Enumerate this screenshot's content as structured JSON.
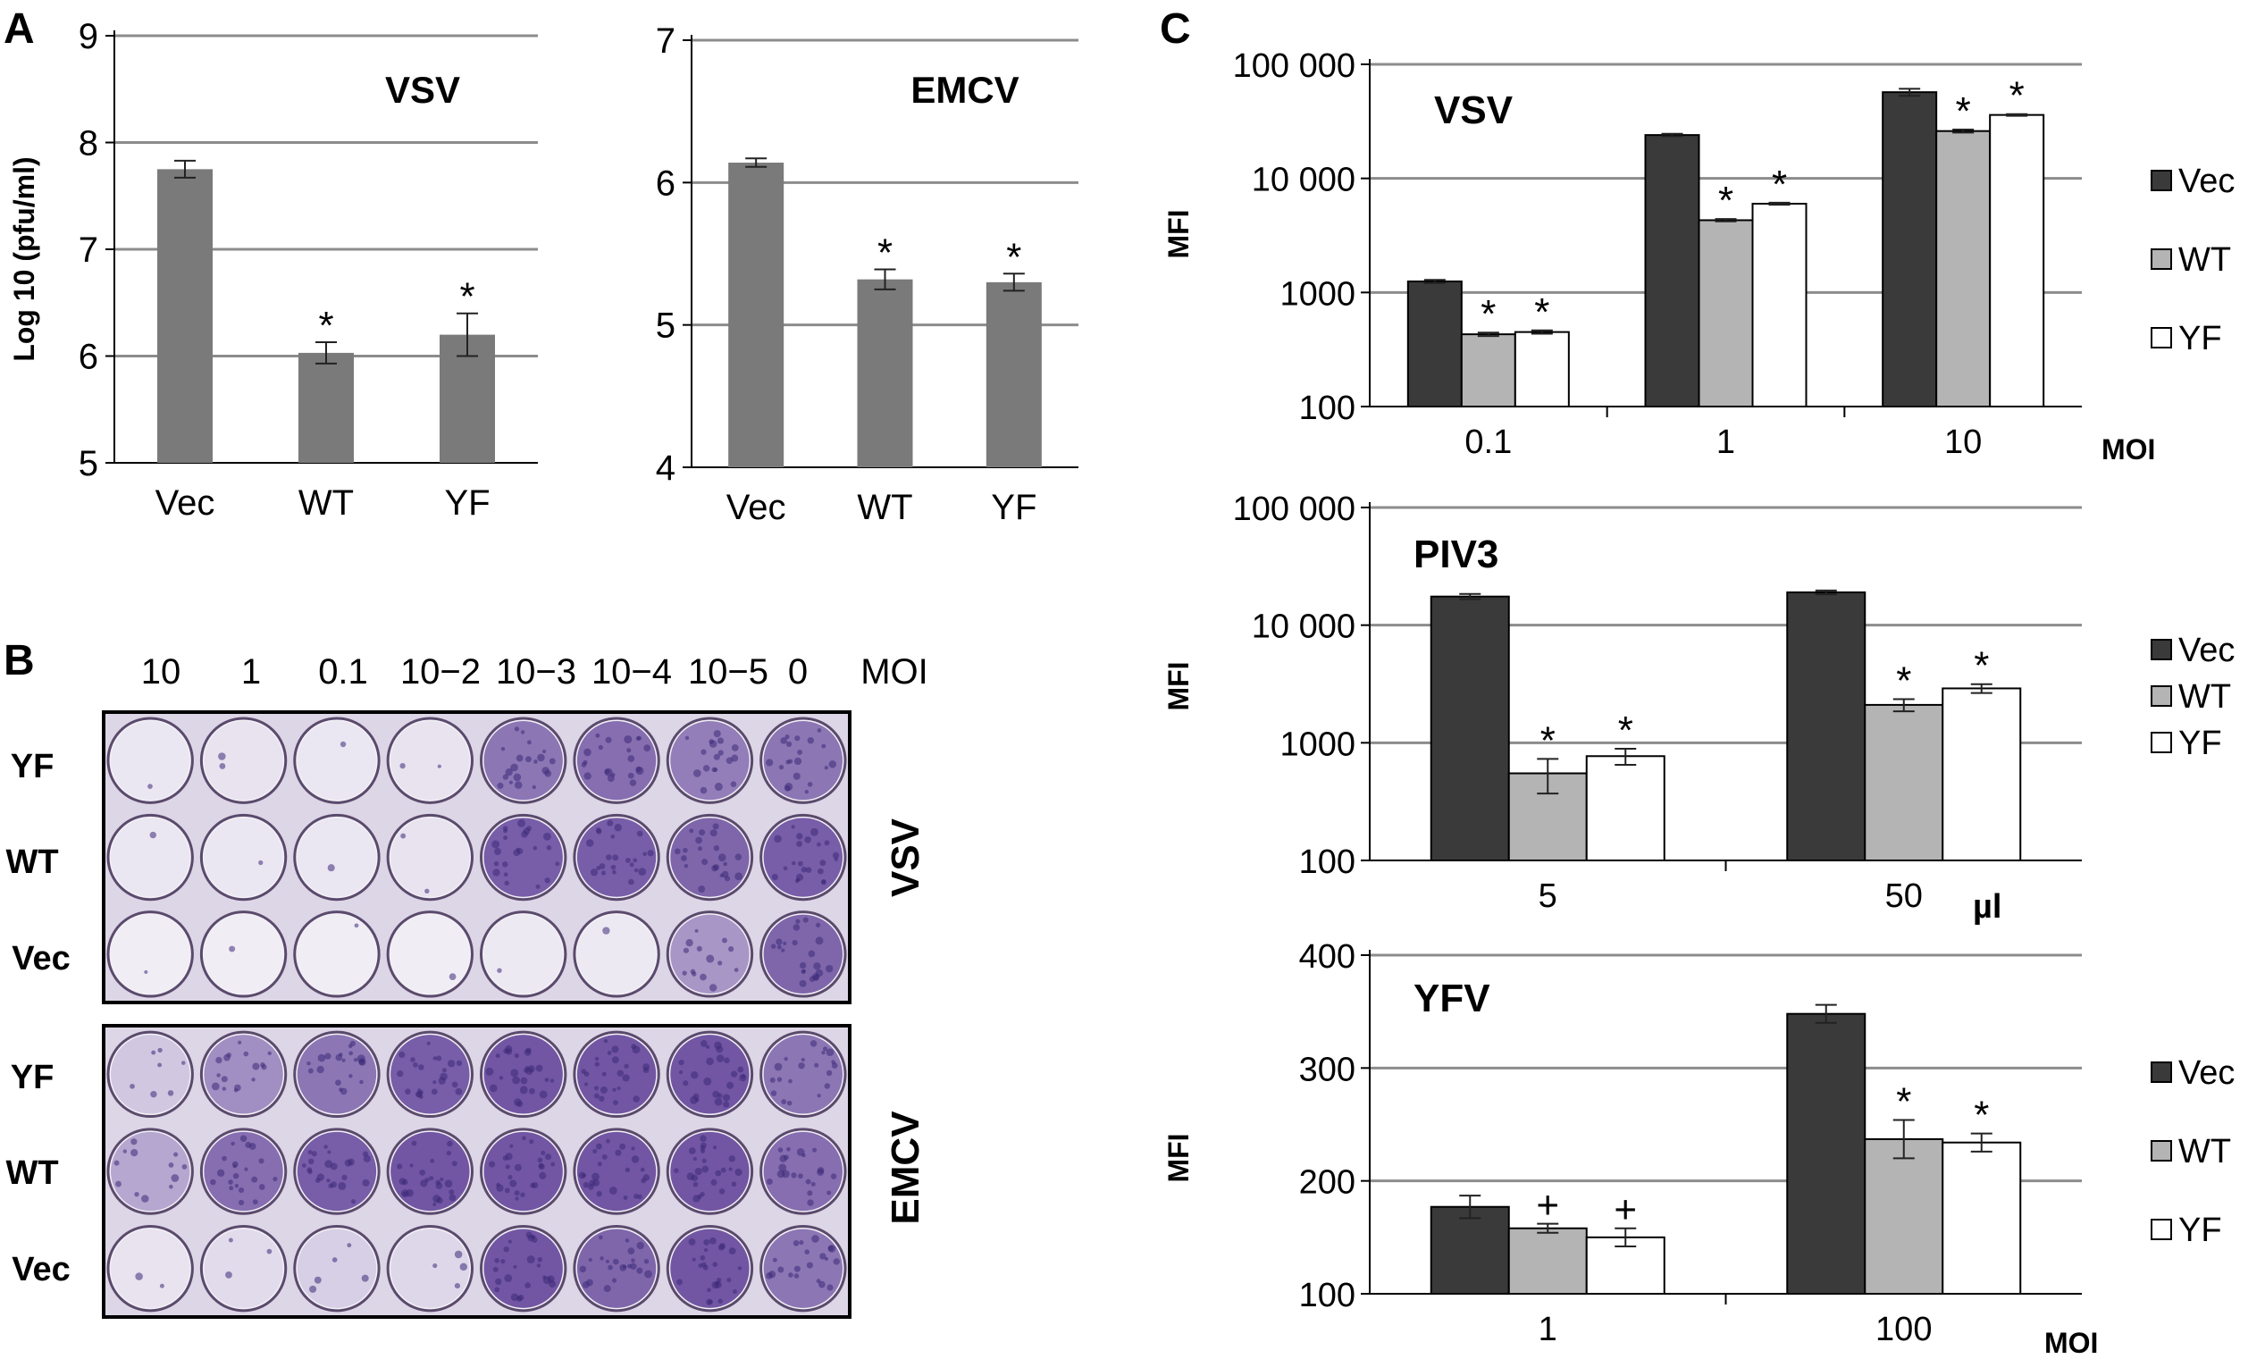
{
  "panel_labels": {
    "A": "A",
    "B": "B",
    "C": "C"
  },
  "colors": {
    "bar_grey": "#7a7a7a",
    "vec": "#3a3a3a",
    "wt": "#b4b4b4",
    "yf": "#ffffff",
    "grid": "#8c8c8c",
    "plaque": "#6a4d9e",
    "plate_bg": "#ddd6e6"
  },
  "panel_b": {
    "moi_header": [
      "10",
      "1",
      "0.1",
      "10−2",
      "10−3",
      "10−4",
      "10−5",
      "0",
      "MOI"
    ],
    "plates": [
      {
        "virus": "VSV",
        "rows": [
          {
            "label": "YF",
            "density": [
              0.05,
              0.08,
              0.05,
              0.08,
              0.75,
              0.8,
              0.7,
              0.75
            ]
          },
          {
            "label": "WT",
            "density": [
              0.05,
              0.05,
              0.05,
              0.08,
              0.9,
              0.9,
              0.85,
              0.9
            ]
          },
          {
            "label": "Vec",
            "density": [
              0.02,
              0.02,
              0.02,
              0.02,
              0.04,
              0.04,
              0.55,
              0.85
            ]
          }
        ]
      },
      {
        "virus": "EMCV",
        "rows": [
          {
            "label": "YF",
            "density": [
              0.25,
              0.6,
              0.75,
              0.9,
              0.95,
              0.95,
              0.95,
              0.75
            ]
          },
          {
            "label": "WT",
            "density": [
              0.45,
              0.8,
              0.9,
              0.95,
              0.95,
              0.95,
              0.95,
              0.8
            ]
          },
          {
            "label": "Vec",
            "density": [
              0.08,
              0.12,
              0.2,
              0.15,
              0.95,
              0.85,
              0.95,
              0.75
            ]
          }
        ]
      }
    ]
  },
  "chart_data": [
    {
      "id": "A-VSV",
      "type": "bar",
      "title": "VSV",
      "ylabel": "Log 10 (pfu/ml)",
      "ylim": [
        5,
        9
      ],
      "yticks": [
        "5",
        "6",
        "7",
        "8",
        "9"
      ],
      "categories": [
        "Vec",
        "WT",
        "YF"
      ],
      "values": [
        7.75,
        6.03,
        6.2
      ],
      "errors": [
        0.08,
        0.1,
        0.2
      ],
      "annotations": [
        "",
        "*",
        "*"
      ]
    },
    {
      "id": "A-EMCV",
      "type": "bar",
      "title": "EMCV",
      "ylabel": "",
      "ylim": [
        4,
        7
      ],
      "yticks": [
        "4",
        "5",
        "6",
        "7"
      ],
      "categories": [
        "Vec",
        "WT",
        "YF"
      ],
      "values": [
        6.14,
        5.32,
        5.3
      ],
      "errors": [
        0.03,
        0.07,
        0.06
      ],
      "annotations": [
        "",
        "*",
        "*"
      ]
    },
    {
      "id": "C-VSV",
      "type": "bar",
      "title": "VSV",
      "ylabel": "MFI",
      "scale": "log",
      "ylim": [
        100,
        100000
      ],
      "yticks": [
        "100",
        "1000",
        "10 000",
        "100 000"
      ],
      "categories": [
        "0.1",
        "1",
        "10"
      ],
      "xunit": "MOI",
      "legend": [
        "Vec",
        "WT",
        "YF"
      ],
      "series": [
        {
          "name": "Vec",
          "values": [
            1250,
            24000,
            57000
          ],
          "errors": [
            40,
            600,
            4000
          ],
          "annotations": [
            "",
            "",
            ""
          ]
        },
        {
          "name": "WT",
          "values": [
            430,
            4300,
            26000
          ],
          "errors": [
            15,
            100,
            800
          ],
          "annotations": [
            "*",
            "*",
            "*"
          ]
        },
        {
          "name": "YF",
          "values": [
            450,
            6000,
            36000
          ],
          "errors": [
            15,
            120,
            600
          ],
          "annotations": [
            "*",
            "*",
            "*"
          ]
        }
      ]
    },
    {
      "id": "C-PIV3",
      "type": "bar",
      "title": "PIV3",
      "ylabel": "MFI",
      "scale": "log",
      "ylim": [
        100,
        100000
      ],
      "yticks": [
        "100",
        "1000",
        "10 000",
        "100 000"
      ],
      "categories": [
        "5",
        "50"
      ],
      "xunit": "µl",
      "legend": [
        "Vec",
        "WT",
        "YF"
      ],
      "series": [
        {
          "name": "Vec",
          "values": [
            17500,
            19000
          ],
          "errors": [
            900,
            700
          ],
          "annotations": [
            "",
            ""
          ]
        },
        {
          "name": "WT",
          "values": [
            550,
            2100
          ],
          "errors": [
            180,
            250
          ],
          "annotations": [
            "*",
            "*"
          ]
        },
        {
          "name": "YF",
          "values": [
            770,
            2900
          ],
          "errors": [
            120,
            250
          ],
          "annotations": [
            "*",
            "*"
          ]
        }
      ]
    },
    {
      "id": "C-YFV",
      "type": "bar",
      "title": "YFV",
      "ylabel": "MFI",
      "ylim": [
        100,
        400
      ],
      "yticks": [
        "100",
        "200",
        "300",
        "400"
      ],
      "categories": [
        "1",
        "100"
      ],
      "xunit": "MOI",
      "legend": [
        "Vec",
        "WT",
        "YF"
      ],
      "series": [
        {
          "name": "Vec",
          "values": [
            177,
            348
          ],
          "errors": [
            10,
            8
          ],
          "annotations": [
            "",
            ""
          ]
        },
        {
          "name": "WT",
          "values": [
            158,
            237
          ],
          "errors": [
            4,
            17
          ],
          "annotations": [
            "+",
            "*"
          ]
        },
        {
          "name": "YF",
          "values": [
            150,
            234
          ],
          "errors": [
            8,
            8
          ],
          "annotations": [
            "+",
            "*"
          ]
        }
      ]
    }
  ]
}
